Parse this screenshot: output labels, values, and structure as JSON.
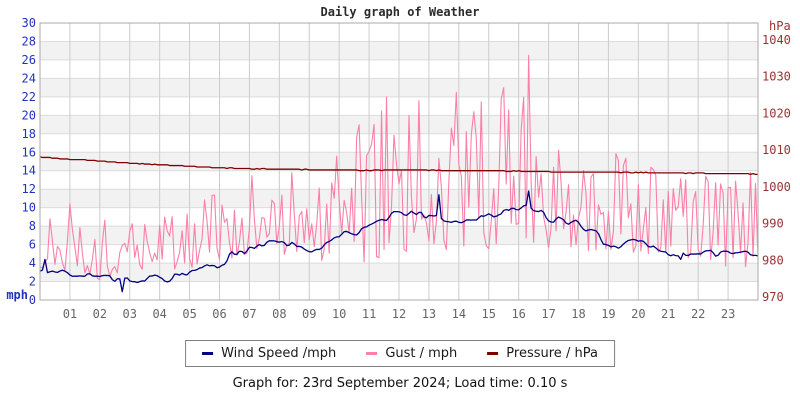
{
  "page": {
    "title": "Daily graph of Weather",
    "caption": "Graph for: 23rd September 2024; Load time: 0.10 s"
  },
  "legend": {
    "items": [
      {
        "label": "Wind Speed /mph",
        "color": "#000080"
      },
      {
        "label": "Gust / mph",
        "color": "#fb7faa"
      },
      {
        "label": "Pressure / hPa",
        "color": "#7f0000"
      }
    ]
  },
  "chart_data": {
    "type": "line",
    "title": "Daily graph of Weather",
    "x_axis": {
      "unit": "hour of day",
      "range": [
        0,
        24
      ],
      "tick_labels": [
        "01",
        "02",
        "03",
        "04",
        "05",
        "06",
        "07",
        "08",
        "09",
        "10",
        "11",
        "12",
        "13",
        "14",
        "15",
        "16",
        "17",
        "18",
        "19",
        "20",
        "21",
        "22",
        "23"
      ],
      "tick_color": "#666666",
      "grid": true
    },
    "y_left_axis": {
      "unit": "mph",
      "min": 0,
      "max": 30,
      "tick_step": 2,
      "tick_labels": [
        "30",
        "28",
        "26",
        "24",
        "22",
        "20",
        "18",
        "16",
        "14",
        "12",
        "10",
        "8",
        "6",
        "4",
        "2",
        "0"
      ],
      "color": "#2233bb"
    },
    "y_right_axis": {
      "unit": "hPa",
      "ticks": [
        1040,
        1030,
        1020,
        1010,
        1000,
        990,
        980,
        970
      ],
      "plot_top_value": 1044.6,
      "plot_bottom_value": 969.2,
      "color": "#993333"
    },
    "style": {
      "background": "#ffffff",
      "band_fill": "#f2f2f2",
      "h_grid_color": "#dcdcdc",
      "v_grid_color": "#cccccc",
      "border_color": "#aaaaaa"
    },
    "series": [
      {
        "name": "Wind Speed /mph",
        "axis": "left",
        "color": "#000080",
        "points_per_hour": 12,
        "hourly_avg": [
          3.3,
          2.7,
          2.3,
          1.6,
          2.8,
          2.6,
          3.3,
          5.5,
          6.0,
          5.3,
          7.0,
          8.3,
          9.6,
          9.3,
          7.8,
          8.8,
          10.0,
          9.0,
          8.0,
          6.0,
          6.5,
          5.0,
          4.5,
          4.6,
          4.3
        ],
        "anchors": [
          [
            0.2,
            4.4
          ],
          [
            2.75,
            0.9
          ],
          [
            13.3,
            11.4
          ],
          [
            16.3,
            11.8
          ],
          [
            21.4,
            4.4
          ]
        ]
      },
      {
        "name": "Gust / mph",
        "axis": "left",
        "color": "#fb7faa",
        "points_per_hour": 12,
        "hourly_max": [
          9,
          10.5,
          8.5,
          10,
          10.5,
          11,
          12,
          14,
          14.5,
          13,
          16.5,
          22,
          21,
          22.5,
          19,
          23,
          26.5,
          20,
          18.5,
          17,
          16,
          16,
          13.5,
          14
        ],
        "hourly_min": [
          3.5,
          3,
          2.2,
          2.8,
          3.2,
          3.5,
          4,
          5,
          5,
          4.5,
          4,
          4,
          5,
          5.5,
          5,
          5.5,
          6,
          5.5,
          5,
          5.5,
          5,
          4.5,
          4,
          3.5
        ],
        "anchors": [
          [
            0.35,
            8.8
          ],
          [
            0.97,
            10.4
          ],
          [
            11.6,
            22
          ],
          [
            13.9,
            22.5
          ],
          [
            15.5,
            23
          ],
          [
            16.33,
            26.5
          ]
        ]
      },
      {
        "name": "Pressure / hPa",
        "axis": "right",
        "color": "#7f0000",
        "points_per_hour": 12,
        "hourly": [
          1008.1,
          1007.5,
          1007.0,
          1006.5,
          1006.0,
          1005.6,
          1005.2,
          1004.9,
          1004.8,
          1004.7,
          1004.6,
          1004.5,
          1004.6,
          1004.5,
          1004.4,
          1004.4,
          1004.3,
          1004.1,
          1004.0,
          1004.0,
          1003.9,
          1003.8,
          1003.7,
          1003.6,
          1003.5
        ]
      }
    ]
  }
}
